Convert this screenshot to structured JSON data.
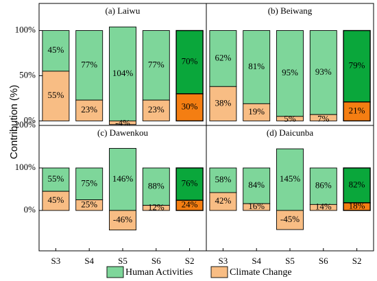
{
  "chart_data": {
    "type": "bar",
    "stacked": true,
    "ylabel": "Contribution (%)",
    "categories": [
      "S3",
      "S4",
      "S5",
      "S6",
      "S2"
    ],
    "legend": [
      {
        "name": "Human Activities",
        "color": "#7ed69a"
      },
      {
        "name": "Climate Change",
        "color": "#f8bd84"
      }
    ],
    "highlight_colors": {
      "human": "#0aa73b",
      "climate": "#f47e12"
    },
    "highlight_category": "S2",
    "rows": [
      {
        "ylim": [
          -5,
          130
        ],
        "yticks": [
          "0%",
          "50%",
          "100%"
        ],
        "ytick_values": [
          0,
          50,
          100
        ]
      },
      {
        "ylim": [
          -95,
          200
        ],
        "yticks": [
          "0%",
          "100%",
          "200%"
        ],
        "ytick_values": [
          0,
          100,
          200
        ]
      }
    ],
    "panels": [
      {
        "title": "(a) Laiwu",
        "row": 0,
        "col": 0,
        "human": [
          45,
          77,
          104,
          77,
          70
        ],
        "climate": [
          55,
          23,
          -4,
          23,
          30
        ],
        "human_labels": [
          "45%",
          "77%",
          "104%",
          "77%",
          "70%"
        ],
        "climate_labels": [
          "55%",
          "23%",
          "-4%",
          "23%",
          "30%"
        ]
      },
      {
        "title": "(b) Beiwang",
        "row": 0,
        "col": 1,
        "human": [
          62,
          81,
          95,
          93,
          79
        ],
        "climate": [
          38,
          19,
          5,
          7,
          21
        ],
        "human_labels": [
          "62%",
          "81%",
          "95%",
          "93%",
          "79%"
        ],
        "climate_labels": [
          "38%",
          "19%",
          "5%",
          "7%",
          "21%"
        ]
      },
      {
        "title": "(c) Dawenkou",
        "row": 1,
        "col": 0,
        "human": [
          55,
          75,
          146,
          88,
          76
        ],
        "climate": [
          45,
          25,
          -46,
          12,
          24
        ],
        "human_labels": [
          "55%",
          "75%",
          "146%",
          "88%",
          "76%"
        ],
        "climate_labels": [
          "45%",
          "25%",
          "-46%",
          "12%",
          "24%"
        ]
      },
      {
        "title": "(d) Daicunba",
        "row": 1,
        "col": 1,
        "human": [
          58,
          84,
          145,
          86,
          82
        ],
        "climate": [
          42,
          16,
          -45,
          14,
          18
        ],
        "human_labels": [
          "58%",
          "84%",
          "145%",
          "86%",
          "82%"
        ],
        "climate_labels": [
          "42%",
          "16%",
          "-45%",
          "14%",
          "18%"
        ]
      }
    ]
  }
}
